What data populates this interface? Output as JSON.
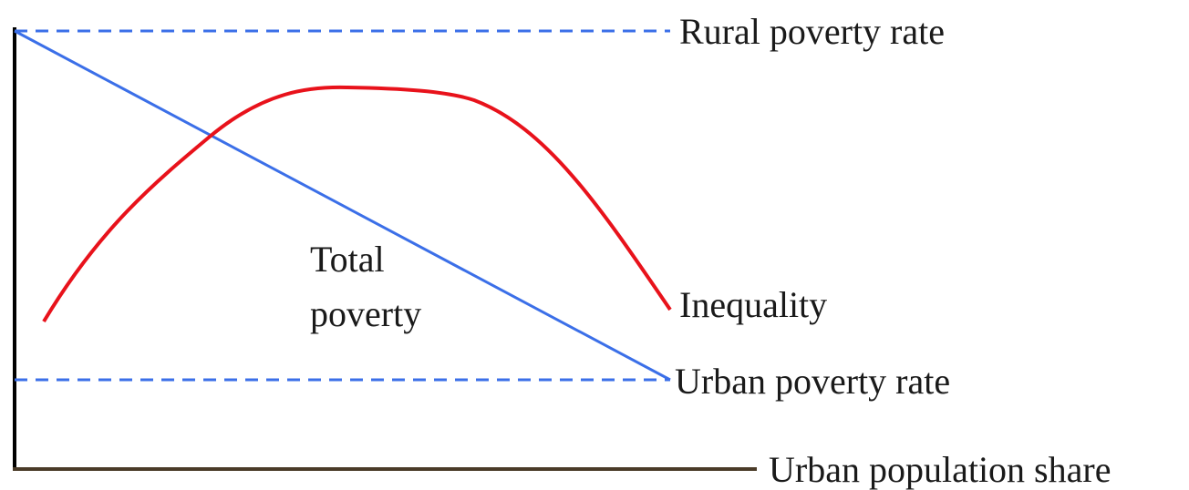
{
  "labels": {
    "rural": "Rural poverty rate",
    "total": [
      "Total",
      "poverty"
    ],
    "inequality": "Inequality",
    "urban": "Urban poverty rate",
    "x_axis": "Urban population share"
  }
}
